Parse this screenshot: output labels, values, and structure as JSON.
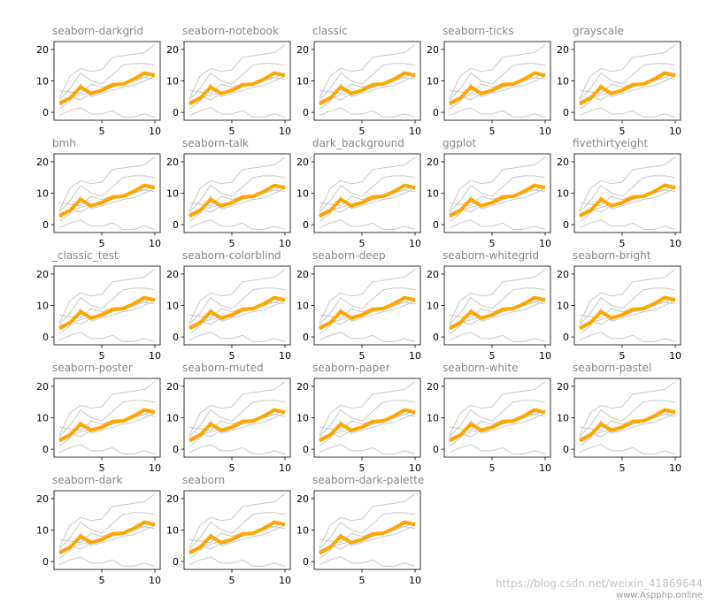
{
  "chart_data": {
    "type": "line",
    "grid": false,
    "ylim": [
      -2.5,
      22.5
    ],
    "xlim": [
      0.5,
      10.5
    ],
    "xticks": [
      5,
      10
    ],
    "yticks": [
      0,
      10,
      20
    ],
    "x": [
      1,
      2,
      3,
      4,
      5,
      6,
      7,
      8,
      9,
      10
    ],
    "background_series": [
      {
        "values": [
          4.5,
          11.5,
          14,
          13,
          13.5,
          17.5,
          18,
          18.5,
          19,
          21.5
        ]
      },
      {
        "values": [
          4,
          7.5,
          12.5,
          10,
          9,
          12,
          15,
          15.5,
          15.5,
          15
        ]
      },
      {
        "values": [
          7,
          6.5,
          6,
          9,
          8,
          9,
          9,
          11,
          11,
          10.5
        ]
      },
      {
        "values": [
          3.5,
          5,
          4,
          6,
          6.5,
          8,
          9,
          10,
          11,
          12.5
        ]
      },
      {
        "values": [
          1,
          3.5,
          9,
          5,
          6,
          7,
          8,
          8.5,
          10,
          11.5
        ]
      },
      {
        "values": [
          2.5,
          4.5,
          5.5,
          6.5,
          7,
          8,
          9.5,
          10,
          12,
          12
        ]
      },
      {
        "values": [
          -1,
          0.5,
          1.5,
          -0.5,
          -0.5,
          0.5,
          -1.5,
          -1.5,
          -0.5,
          -1.5
        ]
      }
    ],
    "highlight_series": {
      "values": [
        2.7,
        4.5,
        8,
        6,
        7,
        8.8,
        9,
        10.5,
        12.5,
        11.7
      ]
    },
    "colors": {
      "background_line": "#c8c8c8",
      "highlight_line": "#ffa500",
      "title": "#888888",
      "axis": "#000000"
    },
    "panels": [
      {
        "title": "seaborn-darkgrid"
      },
      {
        "title": "seaborn-notebook"
      },
      {
        "title": "classic"
      },
      {
        "title": "seaborn-ticks"
      },
      {
        "title": "grayscale"
      },
      {
        "title": "bmh"
      },
      {
        "title": "seaborn-talk"
      },
      {
        "title": "dark_background"
      },
      {
        "title": "ggplot"
      },
      {
        "title": "fivethirtyeight"
      },
      {
        "title": "_classic_test"
      },
      {
        "title": "seaborn-colorblind"
      },
      {
        "title": "seaborn-deep"
      },
      {
        "title": "seaborn-whitegrid"
      },
      {
        "title": "seaborn-bright"
      },
      {
        "title": "seaborn-poster"
      },
      {
        "title": "seaborn-muted"
      },
      {
        "title": "seaborn-paper"
      },
      {
        "title": "seaborn-white"
      },
      {
        "title": "seaborn-pastel"
      },
      {
        "title": "seaborn-dark"
      },
      {
        "title": "seaborn"
      },
      {
        "title": "seaborn-dark-palette"
      }
    ]
  },
  "watermark": {
    "line1": "https://blog.csdn.net/weixin_41869644",
    "line2": "www.Aspphp.online"
  }
}
